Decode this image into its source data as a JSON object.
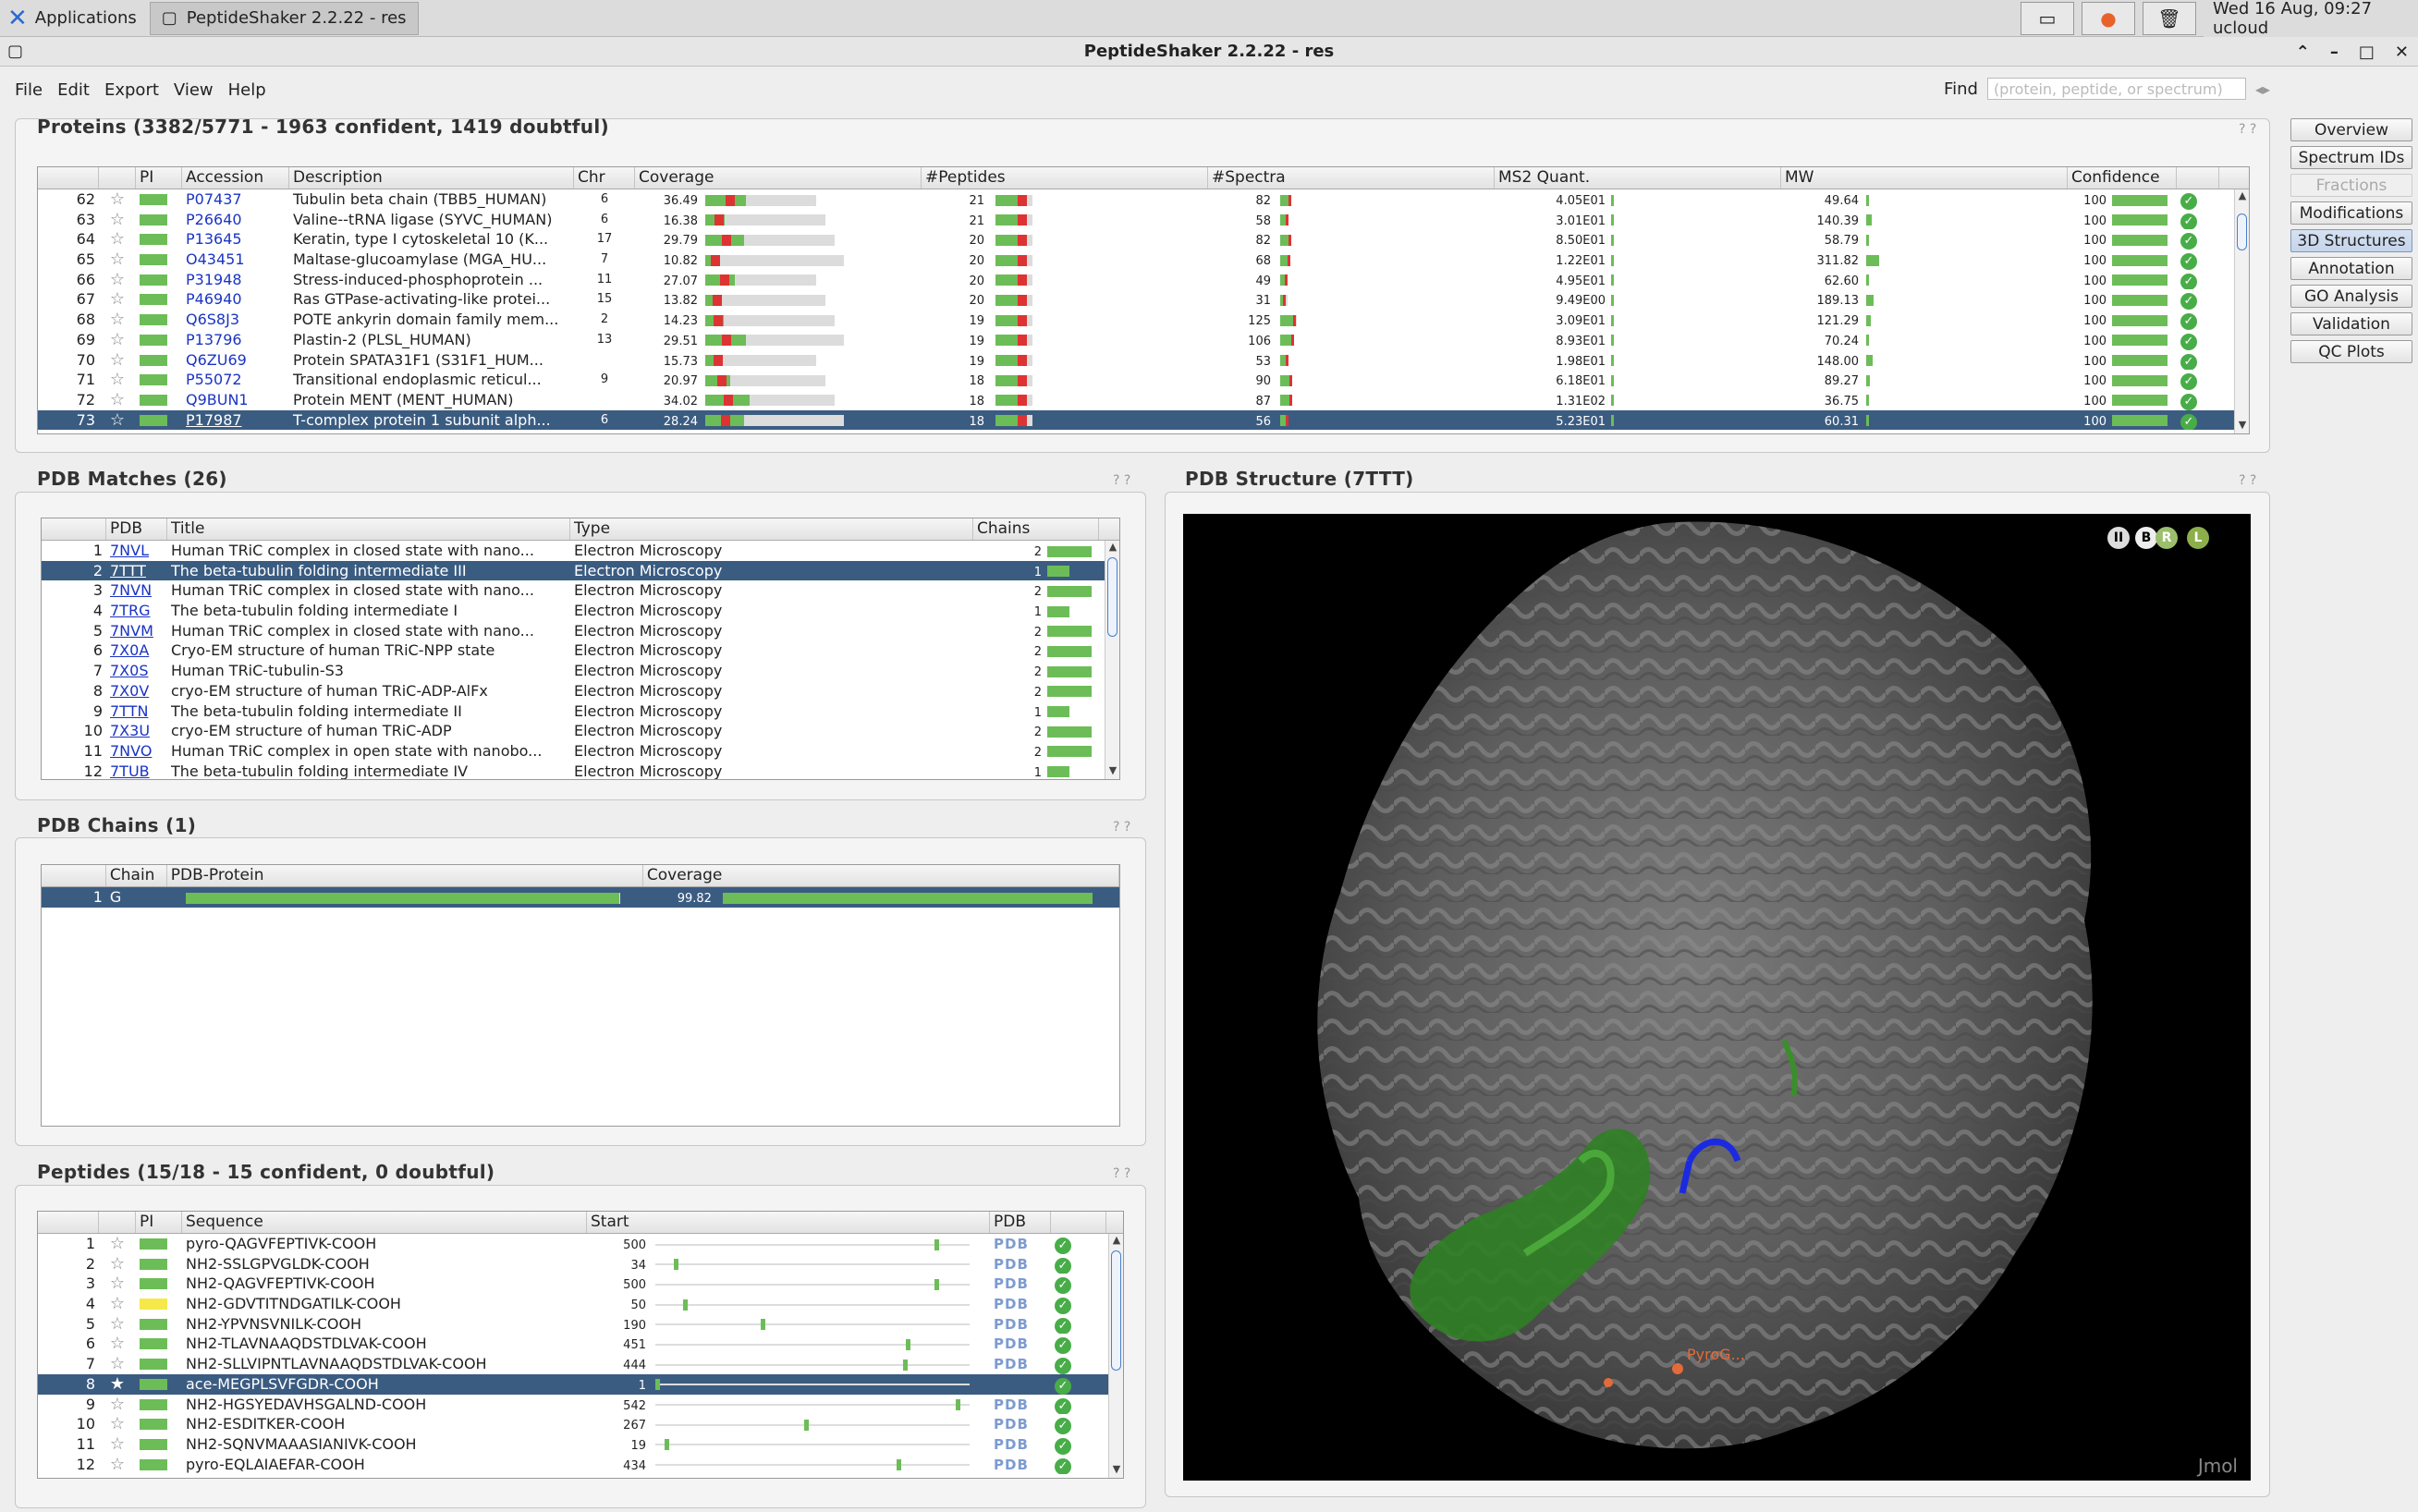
{
  "taskbar": {
    "apps": "Applications",
    "task": "PeptideShaker 2.2.22 - res",
    "clock": "Wed 16 Aug, 09:27 ucloud"
  },
  "window": {
    "title": "PeptideShaker 2.2.22 - res"
  },
  "menu": [
    "File",
    "Edit",
    "Export",
    "View",
    "Help"
  ],
  "find": {
    "label": "Find",
    "placeholder": "(protein, peptide, or spectrum)"
  },
  "proteins": {
    "title": "Proteins (3382/5771 - 1963 confident, 1419 doubtful)",
    "columns": [
      "",
      "",
      "PI",
      "Accession",
      "Description",
      "Chr",
      "Coverage",
      "#Peptides",
      "#Spectra",
      "MS2 Quant.",
      "MW",
      "Confidence",
      ""
    ],
    "rows": [
      {
        "n": "62",
        "acc": "P07437",
        "desc": "Tubulin beta chain (TBB5_HUMAN)",
        "chr": "6",
        "cov": "36.49",
        "pep": "21",
        "spec": "82",
        "ms2": "4.05E01",
        "mw": "49.64",
        "conf": "100"
      },
      {
        "n": "63",
        "acc": "P26640",
        "desc": "Valine--tRNA ligase (SYVC_HUMAN)",
        "chr": "6",
        "cov": "16.38",
        "pep": "21",
        "spec": "58",
        "ms2": "3.01E01",
        "mw": "140.39",
        "conf": "100"
      },
      {
        "n": "64",
        "acc": "P13645",
        "desc": "Keratin, type I cytoskeletal 10 (K...",
        "chr": "17",
        "cov": "29.79",
        "pep": "20",
        "spec": "82",
        "ms2": "8.50E01",
        "mw": "58.79",
        "conf": "100"
      },
      {
        "n": "65",
        "acc": "O43451",
        "desc": "Maltase-glucoamylase (MGA_HU...",
        "chr": "7",
        "cov": "10.82",
        "pep": "20",
        "spec": "68",
        "ms2": "1.22E01",
        "mw": "311.82",
        "conf": "100"
      },
      {
        "n": "66",
        "acc": "P31948",
        "desc": "Stress-induced-phosphoprotein ...",
        "chr": "11",
        "cov": "27.07",
        "pep": "20",
        "spec": "49",
        "ms2": "4.95E01",
        "mw": "62.60",
        "conf": "100"
      },
      {
        "n": "67",
        "acc": "P46940",
        "desc": "Ras GTPase-activating-like protei...",
        "chr": "15",
        "cov": "13.82",
        "pep": "20",
        "spec": "31",
        "ms2": "9.49E00",
        "mw": "189.13",
        "conf": "100"
      },
      {
        "n": "68",
        "acc": "Q6S8J3",
        "desc": "POTE ankyrin domain family mem...",
        "chr": "2",
        "cov": "14.23",
        "pep": "19",
        "spec": "125",
        "ms2": "3.09E01",
        "mw": "121.29",
        "conf": "100"
      },
      {
        "n": "69",
        "acc": "P13796",
        "desc": "Plastin-2 (PLSL_HUMAN)",
        "chr": "13",
        "cov": "29.51",
        "pep": "19",
        "spec": "106",
        "ms2": "8.93E01",
        "mw": "70.24",
        "conf": "100"
      },
      {
        "n": "70",
        "acc": "Q6ZU69",
        "desc": "Protein SPATA31F1 (S31F1_HUM...",
        "chr": "",
        "cov": "15.73",
        "pep": "19",
        "spec": "53",
        "ms2": "1.98E01",
        "mw": "148.00",
        "conf": "100"
      },
      {
        "n": "71",
        "acc": "P55072",
        "desc": "Transitional endoplasmic reticul...",
        "chr": "9",
        "cov": "20.97",
        "pep": "18",
        "spec": "90",
        "ms2": "6.18E01",
        "mw": "89.27",
        "conf": "100"
      },
      {
        "n": "72",
        "acc": "Q9BUN1",
        "desc": "Protein MENT (MENT_HUMAN)",
        "chr": "",
        "cov": "34.02",
        "pep": "18",
        "spec": "87",
        "ms2": "1.31E02",
        "mw": "36.75",
        "conf": "100"
      },
      {
        "n": "73",
        "acc": "P17987",
        "desc": "T-complex protein 1 subunit alph...",
        "chr": "6",
        "cov": "28.24",
        "pep": "18",
        "spec": "56",
        "ms2": "5.23E01",
        "mw": "60.31",
        "conf": "100",
        "selected": true
      }
    ]
  },
  "pdb_matches": {
    "title": "PDB Matches (26)",
    "columns": [
      "",
      "PDB",
      "Title",
      "Type",
      "Chains"
    ],
    "rows": [
      {
        "n": "1",
        "pdb": "7NVL",
        "title": "Human TRiC complex in closed state with nano...",
        "type": "Electron Microscopy",
        "chains": "2"
      },
      {
        "n": "2",
        "pdb": "7TTT",
        "title": "The beta-tubulin folding intermediate III",
        "type": "Electron Microscopy",
        "chains": "1",
        "selected": true
      },
      {
        "n": "3",
        "pdb": "7NVN",
        "title": "Human TRiC complex in closed state with nano...",
        "type": "Electron Microscopy",
        "chains": "2"
      },
      {
        "n": "4",
        "pdb": "7TRG",
        "title": "The beta-tubulin folding intermediate I",
        "type": "Electron Microscopy",
        "chains": "1"
      },
      {
        "n": "5",
        "pdb": "7NVM",
        "title": "Human TRiC complex in closed state with nano...",
        "type": "Electron Microscopy",
        "chains": "2"
      },
      {
        "n": "6",
        "pdb": "7X0A",
        "title": "Cryo-EM structure of human TRiC-NPP state",
        "type": "Electron Microscopy",
        "chains": "2"
      },
      {
        "n": "7",
        "pdb": "7X0S",
        "title": "Human TRiC-tubulin-S3",
        "type": "Electron Microscopy",
        "chains": "2"
      },
      {
        "n": "8",
        "pdb": "7X0V",
        "title": "cryo-EM structure of human TRiC-ADP-AlFx",
        "type": "Electron Microscopy",
        "chains": "2"
      },
      {
        "n": "9",
        "pdb": "7TTN",
        "title": "The beta-tubulin folding intermediate II",
        "type": "Electron Microscopy",
        "chains": "1"
      },
      {
        "n": "10",
        "pdb": "7X3U",
        "title": "cryo-EM structure of human TRiC-ADP",
        "type": "Electron Microscopy",
        "chains": "2"
      },
      {
        "n": "11",
        "pdb": "7NVO",
        "title": "Human TRiC complex in open state with nanobo...",
        "type": "Electron Microscopy",
        "chains": "2"
      },
      {
        "n": "12",
        "pdb": "7TUB",
        "title": "The beta-tubulin folding intermediate IV",
        "type": "Electron Microscopy",
        "chains": "1"
      }
    ]
  },
  "pdb_chains": {
    "title": "PDB Chains (1)",
    "columns": [
      "",
      "Chain",
      "PDB-Protein",
      "Coverage"
    ],
    "rows": [
      {
        "n": "1",
        "chain": "G",
        "cov": "99.82",
        "selected": true
      }
    ]
  },
  "peptides": {
    "title": "Peptides (15/18 - 15 confident, 0 doubtful)",
    "columns": [
      "",
      "",
      "PI",
      "Sequence",
      "Start",
      "PDB",
      ""
    ],
    "rows": [
      {
        "n": "1",
        "seq": "pyro-QAGVFEPTIVK-COOH",
        "start": "500",
        "pos": 0.9,
        "pdb": "PDB"
      },
      {
        "n": "2",
        "seq": "NH2-SSLGPVGLDK-COOH",
        "start": "34",
        "pos": 0.06,
        "pdb": "PDB"
      },
      {
        "n": "3",
        "seq": "NH2-QAGVFEPTIVK-COOH",
        "start": "500",
        "pos": 0.9,
        "pdb": "PDB"
      },
      {
        "n": "4",
        "seq": "NH2-GDVTITNDGATILK-COOH",
        "start": "50",
        "pos": 0.09,
        "pdb": "PDB",
        "pi": "#f5e84a"
      },
      {
        "n": "5",
        "seq": "NH2-YPVNSVNILK-COOH",
        "start": "190",
        "pos": 0.34,
        "pdb": "PDB"
      },
      {
        "n": "6",
        "seq": "NH2-TLAVNAAQDSTDLVAK-COOH",
        "start": "451",
        "pos": 0.81,
        "pdb": "PDB"
      },
      {
        "n": "7",
        "seq": "NH2-SLLVIPNTLAVNAAQDSTDLVAK-COOH",
        "start": "444",
        "pos": 0.8,
        "pdb": "PDB"
      },
      {
        "n": "8",
        "seq": "ace-MEGPLSVFGDR-COOH",
        "start": "1",
        "pos": 0.0,
        "pdb": "",
        "selected": true
      },
      {
        "n": "9",
        "seq": "NH2-HGSYEDAVHSGALND-COOH",
        "start": "542",
        "pos": 0.97,
        "pdb": "PDB"
      },
      {
        "n": "10",
        "seq": "NH2-ESDITKER-COOH",
        "start": "267",
        "pos": 0.48,
        "pdb": "PDB"
      },
      {
        "n": "11",
        "seq": "NH2-SQNVMAAASIANIVK-COOH",
        "start": "19",
        "pos": 0.03,
        "pdb": "PDB"
      },
      {
        "n": "12",
        "seq": "pyro-EQLAIAEFAR-COOH",
        "start": "434",
        "pos": 0.78,
        "pdb": "PDB"
      }
    ]
  },
  "structure": {
    "title": "PDB Structure (7TTT)",
    "viewer_label": "Jmol",
    "label_text": "PyroG..."
  },
  "side_tabs": [
    {
      "label": "Overview"
    },
    {
      "label": "Spectrum IDs"
    },
    {
      "label": "Fractions",
      "disabled": true
    },
    {
      "label": "Modifications"
    },
    {
      "label": "3D Structures",
      "active": true
    },
    {
      "label": "Annotation"
    },
    {
      "label": "GO Analysis"
    },
    {
      "label": "Validation"
    },
    {
      "label": "QC Plots"
    }
  ],
  "help": "? ?"
}
